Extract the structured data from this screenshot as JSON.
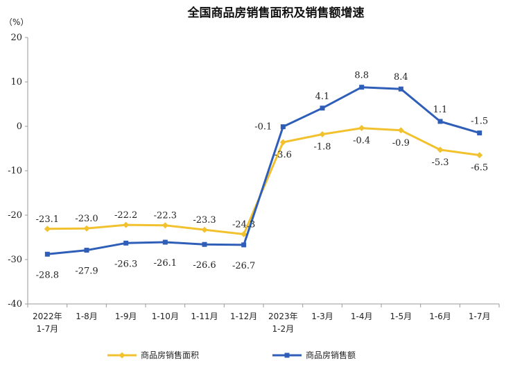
{
  "chart_data": {
    "type": "line",
    "title": "全国商品房销售面积及销售额增速",
    "unit_label": "（%）",
    "categories": [
      [
        "2022年",
        "1-7月"
      ],
      [
        "1-8月"
      ],
      [
        "1-9月"
      ],
      [
        "1-10月"
      ],
      [
        "1-11月"
      ],
      [
        "1-12月"
      ],
      [
        "2023年",
        "1-2月"
      ],
      [
        "1-3月"
      ],
      [
        "1-4月"
      ],
      [
        "1-5月"
      ],
      [
        "1-6月"
      ],
      [
        "1-7月"
      ]
    ],
    "ylim": [
      -40,
      20
    ],
    "yticks": [
      20,
      10,
      0,
      -10,
      -20,
      -30,
      -40
    ],
    "grid": false,
    "legend_position": "bottom",
    "series": [
      {
        "name": "商品房销售面积",
        "color": "#F2C12E",
        "marker": "diamond",
        "values": [
          -23.1,
          -23.0,
          -22.2,
          -22.3,
          -23.3,
          -24.3,
          -3.6,
          -1.8,
          -0.4,
          -0.9,
          -5.3,
          -6.5
        ],
        "labels": [
          "-23.1",
          "-23.0",
          "-22.2",
          "-22.3",
          "-23.3",
          "-24.3",
          "-3.6",
          "-1.8",
          "-0.4",
          "-0.9",
          "-5.3",
          "-6.5"
        ]
      },
      {
        "name": "商品房销售额",
        "color": "#2E5EB8",
        "marker": "square",
        "values": [
          -28.8,
          -27.9,
          -26.3,
          -26.1,
          -26.6,
          -26.7,
          -0.1,
          4.1,
          8.8,
          8.4,
          1.1,
          -1.5
        ],
        "labels": [
          "-28.8",
          "-27.9",
          "-26.3",
          "-26.1",
          "-26.6",
          "-26.7",
          "-0.1",
          "4.1",
          "8.8",
          "8.4",
          "1.1",
          "-1.5"
        ]
      }
    ]
  }
}
